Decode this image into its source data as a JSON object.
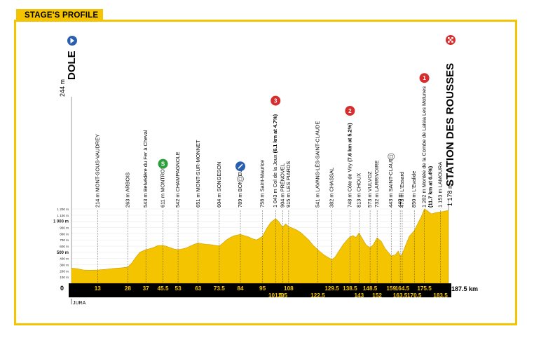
{
  "header": {
    "tab_label": "STAGE'S PROFILE"
  },
  "colors": {
    "accent": "#f5c400",
    "profile": "#f5c400",
    "axis_bar": "#000000",
    "km_text": "#f5c400",
    "climb": "#d62e2e",
    "sprint": "#2e9e3a",
    "start_marker": "#2a5fb0"
  },
  "chart_data": {
    "type": "area",
    "title": "",
    "xlabel": "",
    "ylabel": "",
    "start": {
      "name": "DOLE",
      "altitude": "244 m",
      "icon": "start-arrow-icon"
    },
    "finish": {
      "name": "STATION DES ROUSSES",
      "altitude": "1 178 m",
      "icon": "finish-flag-icon"
    },
    "region_label": "JURA",
    "total_distance_label": "187.5 km",
    "xlim": [
      0,
      187.5
    ],
    "ylim": [
      0,
      1200
    ],
    "y_ticks": [
      {
        "value": 100,
        "label": "100 m",
        "bold": false
      },
      {
        "value": 200,
        "label": "200 m",
        "bold": false
      },
      {
        "value": 300,
        "label": "300 m",
        "bold": false
      },
      {
        "value": 400,
        "label": "400 m",
        "bold": false
      },
      {
        "value": 500,
        "label": "500 m",
        "bold": true
      },
      {
        "value": 600,
        "label": "600 m",
        "bold": false
      },
      {
        "value": 700,
        "label": "700 m",
        "bold": false
      },
      {
        "value": 800,
        "label": "800 m",
        "bold": false
      },
      {
        "value": 900,
        "label": "900 m",
        "bold": false
      },
      {
        "value": 1000,
        "label": "1 000 m",
        "bold": true
      },
      {
        "value": 1100,
        "label": "1 100 m",
        "bold": false
      },
      {
        "value": 1200,
        "label": "1 200 m",
        "bold": false
      }
    ],
    "x_axis_zero_label": "0",
    "km_labels": [
      {
        "km": 13,
        "label": "13",
        "row": 1
      },
      {
        "km": 28,
        "label": "28",
        "row": 1
      },
      {
        "km": 37,
        "label": "37",
        "row": 1
      },
      {
        "km": 45.5,
        "label": "45.5",
        "row": 1
      },
      {
        "km": 53,
        "label": "53",
        "row": 1
      },
      {
        "km": 63,
        "label": "63",
        "row": 1
      },
      {
        "km": 73.5,
        "label": "73.5",
        "row": 1
      },
      {
        "km": 84,
        "label": "84",
        "row": 1
      },
      {
        "km": 95,
        "label": "95",
        "row": 1
      },
      {
        "km": 108,
        "label": "108",
        "row": 1
      },
      {
        "km": 129.5,
        "label": "129.5",
        "row": 1
      },
      {
        "km": 138.5,
        "label": "138.5",
        "row": 1
      },
      {
        "km": 148.5,
        "label": "148.5",
        "row": 1
      },
      {
        "km": 159,
        "label": "159",
        "row": 1
      },
      {
        "km": 164.5,
        "label": "164.5",
        "row": 1
      },
      {
        "km": 175.5,
        "label": "175.5",
        "row": 1
      },
      {
        "km": 101.5,
        "label": "101.5",
        "row": 2
      },
      {
        "km": 105,
        "label": "105",
        "row": 2
      },
      {
        "km": 122.5,
        "label": "122.5",
        "row": 2
      },
      {
        "km": 143,
        "label": "143",
        "row": 2
      },
      {
        "km": 152,
        "label": "152",
        "row": 2
      },
      {
        "km": 163.5,
        "label": "163.5",
        "row": 2
      },
      {
        "km": 170.5,
        "label": "170.5",
        "row": 2
      },
      {
        "km": 183.5,
        "label": "183.5",
        "row": 2
      }
    ],
    "waypoints": [
      {
        "km": 13,
        "label": "214 m MONT-SOUS-VAUDREY"
      },
      {
        "km": 28,
        "label": "263 m ARBOIS"
      },
      {
        "km": 37,
        "label": "543 m Belvédère du Fer à Cheval"
      },
      {
        "km": 45.5,
        "label": "611 m MONTROND",
        "badge": "sprint",
        "badge_text": "S"
      },
      {
        "km": 53,
        "label": "542 m CHAMPAGNOLE"
      },
      {
        "km": 63,
        "label": "651 m MONT-SUR-MONNET"
      },
      {
        "km": 73.5,
        "label": "604 m SONGESON"
      },
      {
        "km": 84,
        "label": "789 m BONLIEU",
        "badge": "start_marker",
        "feed": true
      },
      {
        "km": 95,
        "label": "758 m Saint-Maurice"
      },
      {
        "km": 101.5,
        "label_prefix": "1 043 m Col de la Joux ",
        "label_bold": "(6.1 km at 4.7%)",
        "badge": "climb",
        "badge_text": "3"
      },
      {
        "km": 105,
        "label": "904 m PRÉNOVEL"
      },
      {
        "km": 108,
        "label": "915 m LES PIARDS"
      },
      {
        "km": 122.5,
        "label": "541 m LAVANS-LÈS-SAINT-CLAUDE"
      },
      {
        "km": 129.5,
        "label": "382 m CHASSAL"
      },
      {
        "km": 138.5,
        "label_prefix": "748 m Côte de Viry ",
        "label_bold": "(7.6 km at 5.2%)",
        "badge": "climb",
        "badge_text": "2"
      },
      {
        "km": 143,
        "label": "813 m CHOUX"
      },
      {
        "km": 148.5,
        "label": "573 m VULVOZ"
      },
      {
        "km": 152,
        "label": "732 m LARRIVOIRE"
      },
      {
        "km": 159,
        "label": "443 m SAINT-CLAUDE",
        "feed": true
      },
      {
        "km": 163.5,
        "label": "440 m"
      },
      {
        "km": 164.5,
        "label": "473 m L'Essard"
      },
      {
        "km": 170.5,
        "label": "850 m L'Evalide"
      },
      {
        "km": 175.5,
        "label": "1 202 m Montée de la Combe de Laisia Les Molunes",
        "label_bold": "(11.7 km at 6.4%)",
        "badge": "climb",
        "badge_text": "1"
      },
      {
        "km": 183.5,
        "label": "1 153 m LAMOURA"
      }
    ],
    "profile": {
      "x": [
        0,
        3,
        6,
        9,
        13,
        17,
        21,
        25,
        28,
        30,
        32,
        34,
        37,
        39,
        41,
        43,
        45.5,
        47,
        49,
        51,
        53,
        55,
        57,
        59,
        61,
        63,
        65,
        67,
        69,
        71,
        73.5,
        75,
        77,
        79,
        81,
        84,
        86,
        88,
        90,
        92,
        95,
        97,
        99,
        101.5,
        103,
        105,
        106.5,
        108,
        110,
        112,
        114,
        116,
        118,
        120,
        122.5,
        124,
        126,
        128,
        129.5,
        131,
        133,
        135,
        137,
        138.5,
        140,
        141.5,
        143,
        145,
        146.5,
        148.5,
        150,
        152,
        154,
        156,
        158,
        159,
        161,
        162.5,
        163.5,
        164.5,
        166,
        168,
        170.5,
        172,
        174,
        175.5,
        177,
        179,
        181,
        183.5,
        185,
        187.5
      ],
      "y": [
        244,
        235,
        215,
        210,
        214,
        225,
        240,
        250,
        263,
        330,
        420,
        500,
        543,
        560,
        580,
        610,
        611,
        600,
        575,
        555,
        542,
        555,
        570,
        600,
        630,
        651,
        640,
        630,
        625,
        615,
        604,
        640,
        700,
        740,
        770,
        789,
        770,
        750,
        720,
        700,
        758,
        880,
        980,
        1043,
        1000,
        904,
        960,
        915,
        890,
        860,
        820,
        760,
        700,
        620,
        541,
        500,
        450,
        410,
        382,
        420,
        520,
        620,
        700,
        748,
        770,
        740,
        813,
        700,
        620,
        573,
        620,
        732,
        680,
        560,
        480,
        443,
        460,
        520,
        440,
        473,
        600,
        760,
        850,
        950,
        1080,
        1202,
        1170,
        1120,
        1140,
        1153,
        1160,
        1178
      ]
    }
  }
}
